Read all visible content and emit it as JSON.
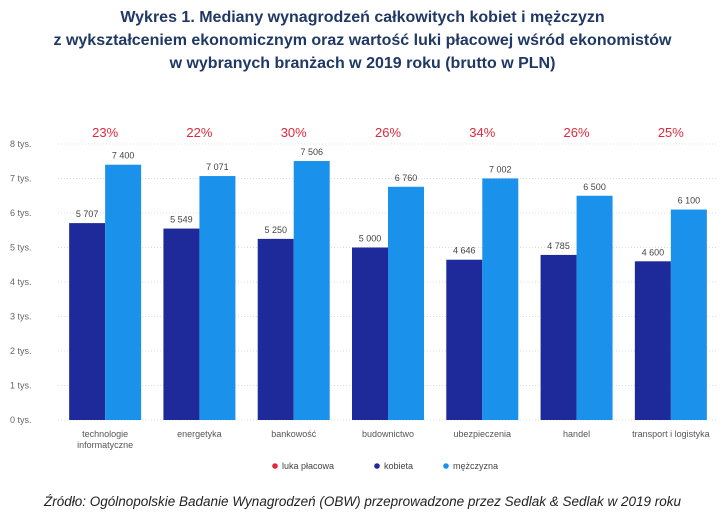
{
  "title_lines": [
    "Wykres 1. Mediany wynagrodzeń całkowitych kobiet i mężczyzn",
    "z wykształceniem ekonomicznym oraz wartość luki płacowej wśród ekonomistów",
    "w wybranych branżach w 2019 roku (brutto w PLN)"
  ],
  "source": "Źródło: Ogólnopolskie Badanie Wynagrodzeń (OBW) przeprowadzone przez Sedlak & Sedlak w 2019 roku",
  "colors": {
    "women": "#1f2a9a",
    "men": "#1a92eb",
    "gap": "#e0283c",
    "grid": "#dcdcdc"
  },
  "chart_data": {
    "type": "bar",
    "categories": [
      [
        "technologie",
        "informatyczne"
      ],
      [
        "energetyka"
      ],
      [
        "bankowość"
      ],
      [
        "budownictwo"
      ],
      [
        "ubezpieczenia"
      ],
      [
        "handel"
      ],
      [
        "transport i logistyka"
      ]
    ],
    "series": [
      {
        "name": "kobieta",
        "values": [
          5707,
          5549,
          5250,
          5000,
          4646,
          4785,
          4600
        ],
        "labels": [
          "5 707",
          "5 549",
          "5 250",
          "5 000",
          "4 646",
          "4 785",
          "4 600"
        ]
      },
      {
        "name": "mężczyzna",
        "values": [
          7400,
          7071,
          7506,
          6760,
          7002,
          6500,
          6100
        ],
        "labels": [
          "7 400",
          "7 071",
          "7 506",
          "6 760",
          "7 002",
          "6 500",
          "6 100"
        ]
      }
    ],
    "gap_name": "luka płacowa",
    "gap_labels": [
      "23%",
      "22%",
      "30%",
      "26%",
      "34%",
      "26%",
      "25%"
    ],
    "ylim": [
      0,
      8000
    ],
    "yticks": [
      0,
      1000,
      2000,
      3000,
      4000,
      5000,
      6000,
      7000,
      8000
    ],
    "ytick_labels": [
      "0 tys.",
      "1 tys.",
      "2 tys.",
      "3 tys.",
      "4 tys.",
      "5 tys.",
      "6 tys.",
      "7 tys.",
      "8 tys."
    ],
    "legend": [
      "luka płacowa",
      "kobieta",
      "mężczyzna"
    ],
    "legend_position": "bottom-center"
  }
}
